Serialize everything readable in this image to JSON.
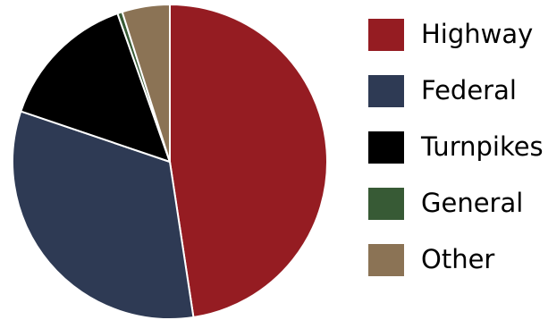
{
  "chart_data": {
    "type": "pie",
    "categories": [
      "Highway",
      "Federal",
      "Turnpikes",
      "General",
      "Other"
    ],
    "values": [
      47.6,
      32.6,
      14.4,
      0.5,
      4.9
    ],
    "colors": [
      "#951C22",
      "#2E3A54",
      "#000000",
      "#375A35",
      "#8B7355"
    ],
    "start": "12 o'clock",
    "direction": "clockwise",
    "legend": "right",
    "title": ""
  }
}
